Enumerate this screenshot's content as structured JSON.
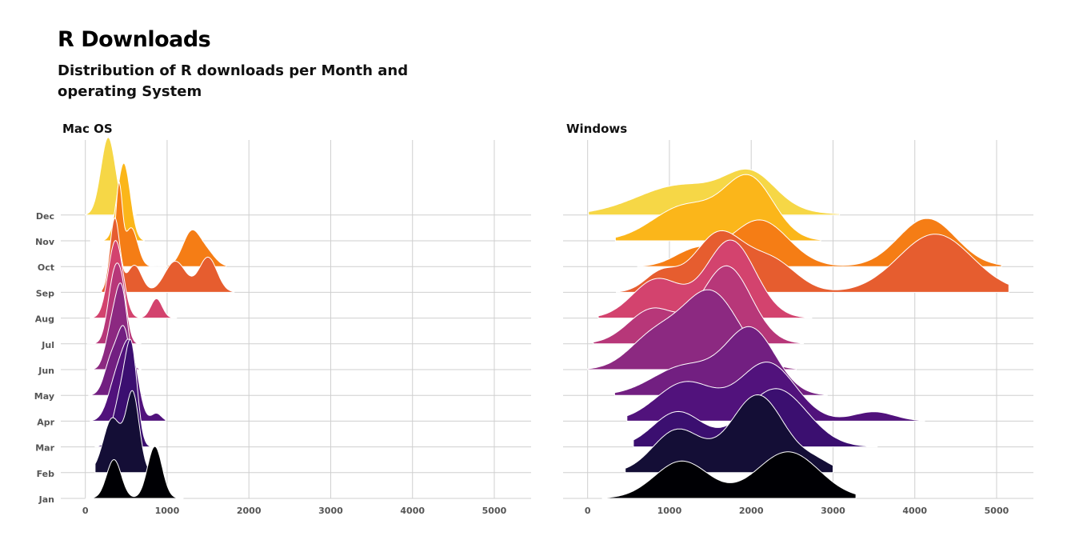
{
  "title": "R Downloads",
  "subtitle": "Distribution of R downloads per Month and operating System",
  "chart_data": {
    "type": "ridgeline",
    "title": "R Downloads",
    "subtitle": "Distribution of R downloads per Month and operating System",
    "months": [
      "Jan",
      "Feb",
      "Mar",
      "Apr",
      "May",
      "Jun",
      "Jul",
      "Aug",
      "Sep",
      "Oct",
      "Nov",
      "Dec"
    ],
    "x_ticks": [
      0,
      1000,
      2000,
      3000,
      4000,
      5000
    ],
    "xlim": [
      -300,
      5450
    ],
    "grid": "on",
    "colors": [
      "#000004",
      "#140e36",
      "#3b0f70",
      "#51127c",
      "#721f81",
      "#8c2981",
      "#b73779",
      "#d3436e",
      "#e65d2f",
      "#f57d15",
      "#fbb61a",
      "#f6d746",
      "#fcffa4"
    ],
    "panels": [
      {
        "title": "Mac OS",
        "ridges": [
          {
            "month": "Jan",
            "range": [
              0,
              1200
            ],
            "peaks": [
              [
                350,
                90,
                0.5
              ],
              [
                850,
                90,
                0.67
              ]
            ]
          },
          {
            "month": "Feb",
            "range": [
              120,
              780
            ],
            "peaks": [
              [
                330,
                110,
                0.7
              ],
              [
                580,
                80,
                1.0
              ]
            ]
          },
          {
            "month": "Mar",
            "range": [
              120,
              900
            ],
            "peaks": [
              [
                450,
                100,
                0.7
              ],
              [
                570,
                70,
                1.0
              ]
            ]
          },
          {
            "month": "Apr",
            "range": [
              60,
              980
            ],
            "peaks": [
              [
                400,
                110,
                0.6
              ],
              [
                560,
                90,
                0.8
              ],
              [
                870,
                60,
                0.1
              ]
            ]
          },
          {
            "month": "May",
            "range": [
              40,
              720
            ],
            "peaks": [
              [
                330,
                90,
                0.5
              ],
              [
                480,
                75,
                0.75
              ]
            ]
          },
          {
            "month": "Jun",
            "range": [
              20,
              680
            ],
            "peaks": [
              [
                330,
                80,
                0.55
              ],
              [
                450,
                70,
                0.9
              ]
            ]
          },
          {
            "month": "Jul",
            "range": [
              20,
              680
            ],
            "peaks": [
              [
                360,
                80,
                0.9
              ],
              [
                460,
                60,
                0.4
              ]
            ]
          },
          {
            "month": "Aug",
            "range": [
              60,
              1120
            ],
            "peaks": [
              [
                370,
                90,
                1.0
              ],
              [
                870,
                70,
                0.25
              ]
            ]
          },
          {
            "month": "Sep",
            "range": [
              200,
              1820
            ],
            "peaks": [
              [
                360,
                60,
                0.95
              ],
              [
                600,
                90,
                0.35
              ],
              [
                1100,
                130,
                0.4
              ],
              [
                1500,
                110,
                0.45
              ]
            ]
          },
          {
            "month": "Oct",
            "range": [
              200,
              1720
            ],
            "peaks": [
              [
                410,
                40,
                1.0
              ],
              [
                560,
                80,
                0.5
              ],
              [
                1300,
                110,
                0.45
              ],
              [
                1500,
                100,
                0.15
              ]
            ]
          },
          {
            "month": "Nov",
            "range": [
              60,
              720
            ],
            "peaks": [
              [
                470,
                80,
                1.0
              ]
            ]
          },
          {
            "month": "Dec",
            "range": [
              0,
              620
            ],
            "peaks": [
              [
                280,
                90,
                1.0
              ]
            ]
          }
        ]
      },
      {
        "title": "Windows",
        "ridges": [
          {
            "month": "Jan",
            "range": [
              180,
              3280
            ],
            "peaks": [
              [
                1150,
                330,
                0.48
              ],
              [
                2450,
                380,
                0.6
              ]
            ]
          },
          {
            "month": "Feb",
            "range": [
              460,
              3000
            ],
            "peaks": [
              [
                1100,
                300,
                0.55
              ],
              [
                2080,
                330,
                1.0
              ],
              [
                2800,
                200,
                0.12
              ]
            ]
          },
          {
            "month": "Mar",
            "range": [
              560,
              3540
            ],
            "peaks": [
              [
                1100,
                300,
                0.45
              ],
              [
                2300,
                380,
                0.75
              ]
            ]
          },
          {
            "month": "Apr",
            "range": [
              480,
              4120
            ],
            "peaks": [
              [
                1200,
                360,
                0.5
              ],
              [
                2200,
                340,
                0.75
              ],
              [
                3500,
                250,
                0.12
              ]
            ]
          },
          {
            "month": "May",
            "range": [
              330,
              2930
            ],
            "peaks": [
              [
                1200,
                400,
                0.38
              ],
              [
                2000,
                300,
                0.83
              ]
            ]
          },
          {
            "month": "Jun",
            "range": [
              0,
              2550
            ],
            "peaks": [
              [
                800,
                300,
                0.4
              ],
              [
                1500,
                350,
                1.0
              ]
            ]
          },
          {
            "month": "Jul",
            "range": [
              70,
              2640
            ],
            "peaks": [
              [
                800,
                300,
                0.45
              ],
              [
                1700,
                300,
                1.0
              ]
            ]
          },
          {
            "month": "Aug",
            "range": [
              130,
              2740
            ],
            "peaks": [
              [
                850,
                300,
                0.5
              ],
              [
                1750,
                300,
                1.0
              ]
            ]
          },
          {
            "month": "Sep",
            "range": [
              350,
              5150
            ],
            "peaks": [
              [
                900,
                200,
                0.25
              ],
              [
                1600,
                300,
                0.75
              ],
              [
                2250,
                300,
                0.4
              ],
              [
                4250,
                450,
                0.75
              ]
            ]
          },
          {
            "month": "Oct",
            "range": [
              610,
              5060
            ],
            "peaks": [
              [
                1300,
                250,
                0.2
              ],
              [
                2100,
                350,
                0.6
              ],
              [
                4150,
                350,
                0.62
              ]
            ]
          },
          {
            "month": "Nov",
            "range": [
              340,
              2850
            ],
            "peaks": [
              [
                1200,
                400,
                0.45
              ],
              [
                1980,
                300,
                0.78
              ]
            ]
          },
          {
            "month": "Dec",
            "range": [
              10,
              3080
            ],
            "peaks": [
              [
                1150,
                550,
                0.38
              ],
              [
                2000,
                300,
                0.42
              ],
              [
                2200,
                550,
                0.05
              ]
            ]
          }
        ]
      }
    ]
  }
}
